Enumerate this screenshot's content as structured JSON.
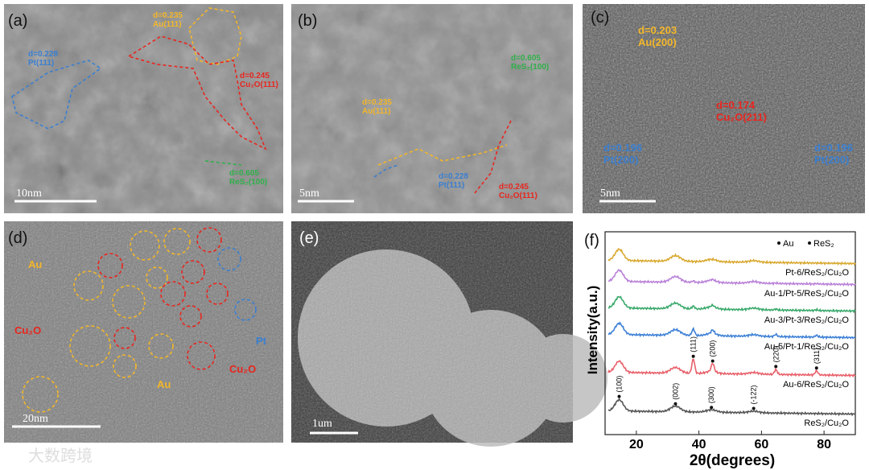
{
  "panels": [
    {
      "label": "(a)",
      "scale_bar": "10nm",
      "annotations": [
        [
          "d=0.235",
          "Au(111)"
        ],
        [
          "d=0.228",
          "Pt(111)"
        ],
        [
          "d=0.245",
          "Cu₂O(111)"
        ],
        [
          "d=0.605",
          "ReS₂(100)"
        ]
      ]
    },
    {
      "label": "(b)",
      "scale_bar": "5nm",
      "annotations": [
        [
          "d=0.235",
          "Au(111)"
        ],
        [
          "d=0.605",
          "ReS₂(100)"
        ],
        [
          "d=0.228",
          "Pt(111)"
        ],
        [
          "d=0.245",
          "Cu₂O(111)"
        ]
      ]
    },
    {
      "label": "(c)",
      "scale_bar": "5nm",
      "annotations": [
        [
          "d=0.203",
          "Au(200)"
        ],
        [
          "d=0.174",
          "Cu₂O(211)"
        ],
        [
          "d=0.196",
          "Pt(200)"
        ],
        [
          "d=0.196",
          "Pt(200)"
        ]
      ]
    },
    {
      "label": "(d)",
      "scale_bar": "20nm",
      "annotations": [
        "Au",
        "Cu₂O",
        "Pt",
        "Au",
        "Cu₂O"
      ]
    },
    {
      "label": "(e)",
      "scale_bar": "1um"
    }
  ],
  "chart_data": {
    "type": "xrd",
    "label": "(f)",
    "xlabel": "2θ(degrees)",
    "ylabel": "Intensity(a.u.)",
    "xlim": [
      10,
      90
    ],
    "xticks": [
      20,
      40,
      60,
      80
    ],
    "legend": [
      "Au",
      "ReS₂"
    ],
    "series": [
      {
        "name": "Pt-6/ReS₂/Cu₂O",
        "color": "#d9a930"
      },
      {
        "name": "Au-1/Pt-5/ReS₂/Cu₂O",
        "color": "#b981d8"
      },
      {
        "name": "Au-3/Pt-3/ReS₂/Cu₂O",
        "color": "#3aa96b"
      },
      {
        "name": "Au-5/Pt-1/ReS₂/Cu₂O",
        "color": "#3d80d6"
      },
      {
        "name": "Au-6/ReS₂/Cu₂O",
        "color": "#e8606a"
      },
      {
        "name": "ReS₂/Cu₂O",
        "color": "#555555"
      }
    ],
    "peaks": [
      {
        "label": "(100)",
        "x": 14.5,
        "phase": "ReS₂"
      },
      {
        "label": "(002)",
        "x": 32.5,
        "phase": "ReS₂"
      },
      {
        "label": "(300)",
        "x": 44,
        "phase": "ReS₂"
      },
      {
        "label": "(-122)",
        "x": 57.5,
        "phase": "ReS₂"
      },
      {
        "label": "(111)",
        "x": 38.2,
        "phase": "Au"
      },
      {
        "label": "(200)",
        "x": 44.4,
        "phase": "Au"
      },
      {
        "label": "(220)",
        "x": 64.6,
        "phase": "Au"
      },
      {
        "label": "(311)",
        "x": 77.6,
        "phase": "Au"
      }
    ]
  },
  "watermark": "大数跨境"
}
